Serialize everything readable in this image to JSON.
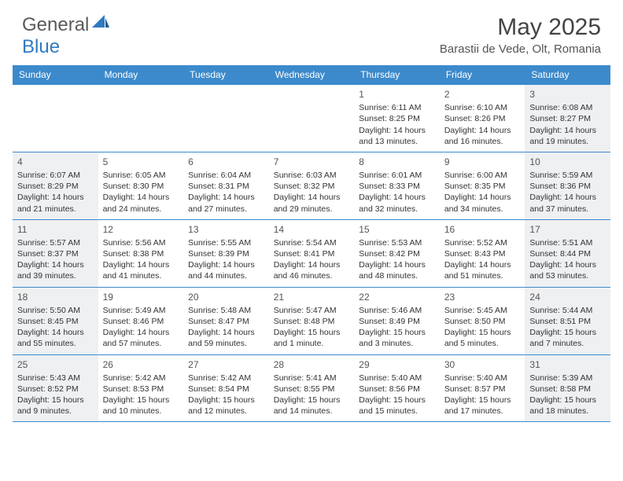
{
  "brand": {
    "word1": "General",
    "word2": "Blue"
  },
  "title": "May 2025",
  "location": "Barastii de Vede, Olt, Romania",
  "colors": {
    "header_bg": "#3c8acc",
    "header_text": "#ffffff",
    "shade_bg": "#eef0f2",
    "rule": "#3c8acc",
    "title_color": "#444444",
    "body_text": "#333333",
    "logo_gray": "#5a5a5a",
    "logo_blue": "#2f7ac0"
  },
  "day_headers": [
    "Sunday",
    "Monday",
    "Tuesday",
    "Wednesday",
    "Thursday",
    "Friday",
    "Saturday"
  ],
  "weeks": [
    [
      {
        "blank": true
      },
      {
        "blank": true
      },
      {
        "blank": true
      },
      {
        "blank": true
      },
      {
        "n": "1",
        "sunrise": "Sunrise: 6:11 AM",
        "sunset": "Sunset: 8:25 PM",
        "day1": "Daylight: 14 hours",
        "day2": "and 13 minutes."
      },
      {
        "n": "2",
        "sunrise": "Sunrise: 6:10 AM",
        "sunset": "Sunset: 8:26 PM",
        "day1": "Daylight: 14 hours",
        "day2": "and 16 minutes."
      },
      {
        "n": "3",
        "sunrise": "Sunrise: 6:08 AM",
        "sunset": "Sunset: 8:27 PM",
        "day1": "Daylight: 14 hours",
        "day2": "and 19 minutes.",
        "shade": true
      }
    ],
    [
      {
        "n": "4",
        "sunrise": "Sunrise: 6:07 AM",
        "sunset": "Sunset: 8:29 PM",
        "day1": "Daylight: 14 hours",
        "day2": "and 21 minutes.",
        "shade": true
      },
      {
        "n": "5",
        "sunrise": "Sunrise: 6:05 AM",
        "sunset": "Sunset: 8:30 PM",
        "day1": "Daylight: 14 hours",
        "day2": "and 24 minutes."
      },
      {
        "n": "6",
        "sunrise": "Sunrise: 6:04 AM",
        "sunset": "Sunset: 8:31 PM",
        "day1": "Daylight: 14 hours",
        "day2": "and 27 minutes."
      },
      {
        "n": "7",
        "sunrise": "Sunrise: 6:03 AM",
        "sunset": "Sunset: 8:32 PM",
        "day1": "Daylight: 14 hours",
        "day2": "and 29 minutes."
      },
      {
        "n": "8",
        "sunrise": "Sunrise: 6:01 AM",
        "sunset": "Sunset: 8:33 PM",
        "day1": "Daylight: 14 hours",
        "day2": "and 32 minutes."
      },
      {
        "n": "9",
        "sunrise": "Sunrise: 6:00 AM",
        "sunset": "Sunset: 8:35 PM",
        "day1": "Daylight: 14 hours",
        "day2": "and 34 minutes."
      },
      {
        "n": "10",
        "sunrise": "Sunrise: 5:59 AM",
        "sunset": "Sunset: 8:36 PM",
        "day1": "Daylight: 14 hours",
        "day2": "and 37 minutes.",
        "shade": true
      }
    ],
    [
      {
        "n": "11",
        "sunrise": "Sunrise: 5:57 AM",
        "sunset": "Sunset: 8:37 PM",
        "day1": "Daylight: 14 hours",
        "day2": "and 39 minutes.",
        "shade": true
      },
      {
        "n": "12",
        "sunrise": "Sunrise: 5:56 AM",
        "sunset": "Sunset: 8:38 PM",
        "day1": "Daylight: 14 hours",
        "day2": "and 41 minutes."
      },
      {
        "n": "13",
        "sunrise": "Sunrise: 5:55 AM",
        "sunset": "Sunset: 8:39 PM",
        "day1": "Daylight: 14 hours",
        "day2": "and 44 minutes."
      },
      {
        "n": "14",
        "sunrise": "Sunrise: 5:54 AM",
        "sunset": "Sunset: 8:41 PM",
        "day1": "Daylight: 14 hours",
        "day2": "and 46 minutes."
      },
      {
        "n": "15",
        "sunrise": "Sunrise: 5:53 AM",
        "sunset": "Sunset: 8:42 PM",
        "day1": "Daylight: 14 hours",
        "day2": "and 48 minutes."
      },
      {
        "n": "16",
        "sunrise": "Sunrise: 5:52 AM",
        "sunset": "Sunset: 8:43 PM",
        "day1": "Daylight: 14 hours",
        "day2": "and 51 minutes."
      },
      {
        "n": "17",
        "sunrise": "Sunrise: 5:51 AM",
        "sunset": "Sunset: 8:44 PM",
        "day1": "Daylight: 14 hours",
        "day2": "and 53 minutes.",
        "shade": true
      }
    ],
    [
      {
        "n": "18",
        "sunrise": "Sunrise: 5:50 AM",
        "sunset": "Sunset: 8:45 PM",
        "day1": "Daylight: 14 hours",
        "day2": "and 55 minutes.",
        "shade": true
      },
      {
        "n": "19",
        "sunrise": "Sunrise: 5:49 AM",
        "sunset": "Sunset: 8:46 PM",
        "day1": "Daylight: 14 hours",
        "day2": "and 57 minutes."
      },
      {
        "n": "20",
        "sunrise": "Sunrise: 5:48 AM",
        "sunset": "Sunset: 8:47 PM",
        "day1": "Daylight: 14 hours",
        "day2": "and 59 minutes."
      },
      {
        "n": "21",
        "sunrise": "Sunrise: 5:47 AM",
        "sunset": "Sunset: 8:48 PM",
        "day1": "Daylight: 15 hours",
        "day2": "and 1 minute."
      },
      {
        "n": "22",
        "sunrise": "Sunrise: 5:46 AM",
        "sunset": "Sunset: 8:49 PM",
        "day1": "Daylight: 15 hours",
        "day2": "and 3 minutes."
      },
      {
        "n": "23",
        "sunrise": "Sunrise: 5:45 AM",
        "sunset": "Sunset: 8:50 PM",
        "day1": "Daylight: 15 hours",
        "day2": "and 5 minutes."
      },
      {
        "n": "24",
        "sunrise": "Sunrise: 5:44 AM",
        "sunset": "Sunset: 8:51 PM",
        "day1": "Daylight: 15 hours",
        "day2": "and 7 minutes.",
        "shade": true
      }
    ],
    [
      {
        "n": "25",
        "sunrise": "Sunrise: 5:43 AM",
        "sunset": "Sunset: 8:52 PM",
        "day1": "Daylight: 15 hours",
        "day2": "and 9 minutes.",
        "shade": true
      },
      {
        "n": "26",
        "sunrise": "Sunrise: 5:42 AM",
        "sunset": "Sunset: 8:53 PM",
        "day1": "Daylight: 15 hours",
        "day2": "and 10 minutes."
      },
      {
        "n": "27",
        "sunrise": "Sunrise: 5:42 AM",
        "sunset": "Sunset: 8:54 PM",
        "day1": "Daylight: 15 hours",
        "day2": "and 12 minutes."
      },
      {
        "n": "28",
        "sunrise": "Sunrise: 5:41 AM",
        "sunset": "Sunset: 8:55 PM",
        "day1": "Daylight: 15 hours",
        "day2": "and 14 minutes."
      },
      {
        "n": "29",
        "sunrise": "Sunrise: 5:40 AM",
        "sunset": "Sunset: 8:56 PM",
        "day1": "Daylight: 15 hours",
        "day2": "and 15 minutes."
      },
      {
        "n": "30",
        "sunrise": "Sunrise: 5:40 AM",
        "sunset": "Sunset: 8:57 PM",
        "day1": "Daylight: 15 hours",
        "day2": "and 17 minutes."
      },
      {
        "n": "31",
        "sunrise": "Sunrise: 5:39 AM",
        "sunset": "Sunset: 8:58 PM",
        "day1": "Daylight: 15 hours",
        "day2": "and 18 minutes.",
        "shade": true
      }
    ]
  ]
}
